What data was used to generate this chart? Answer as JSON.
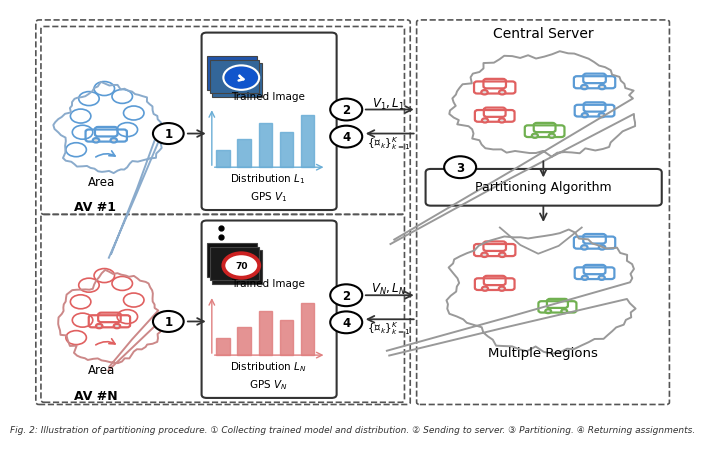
{
  "fig_width": 6.4,
  "fig_height": 4.37,
  "bg_color": "#ffffff",
  "colors": {
    "blue_car": "#5b9bd5",
    "red_car": "#e06060",
    "green_car": "#70b050",
    "gray": "#888888",
    "dark": "#222222",
    "arrow": "#333333",
    "dashed_box": "#555555",
    "bar_blue": "#6baed6",
    "bar_red": "#e08080"
  },
  "labels": {
    "av1": "AV #1",
    "avN": "AV #N",
    "area": "Area",
    "trained_image": "Trained Image",
    "distribution_L1": "Distribution $L_1$",
    "gps_V1": "GPS $V_1$",
    "distribution_LN": "Distribution $L_N$",
    "gps_VN": "GPS $V_N$",
    "central_server": "Central Server",
    "partitioning": "Partitioning Algorithm",
    "multiple_regions": "Multiple Regions",
    "caption": "Fig. 2: Illustration of partitioning procedure.",
    "v1l1": "$V_1,L_1$",
    "vNlN": "$V_N,L_N$",
    "ak_top": "$\\{\\mathcal{A}_k\\}_{k=1}^K$",
    "ak_bot": "$\\{\\mathcal{A}_k\\}_{k=1}^K$"
  }
}
